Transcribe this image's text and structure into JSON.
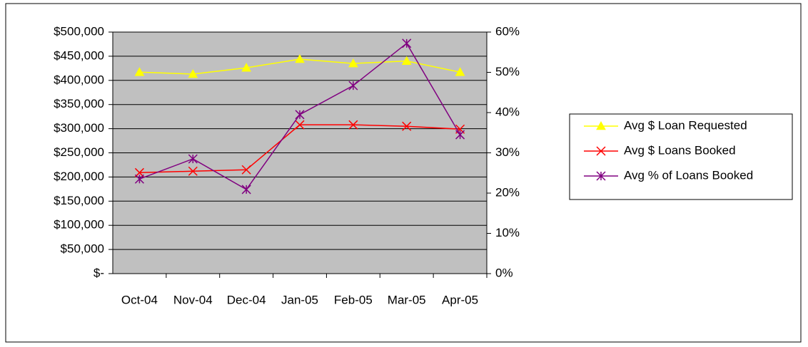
{
  "chart_data": {
    "type": "line",
    "categories": [
      "Oct-04",
      "Nov-04",
      "Dec-04",
      "Jan-05",
      "Feb-05",
      "Mar-05",
      "Apr-05"
    ],
    "series": [
      {
        "name": "Avg $ Loan Requested",
        "color": "#ffff00",
        "marker": "triangle",
        "values": [
          417000,
          413000,
          426000,
          444000,
          435000,
          440000,
          417000
        ]
      },
      {
        "name": "Avg $ Loans Booked",
        "color": "#ff0000",
        "marker": "x",
        "values": [
          209000,
          212000,
          215000,
          308000,
          308000,
          305000,
          299000
        ]
      },
      {
        "name": "Avg % of Loans Booked",
        "color": "#800080",
        "marker": "star",
        "axis": "y2",
        "values": [
          23.5,
          28.5,
          20.9,
          39.5,
          46.7,
          57.2,
          34.5
        ]
      }
    ],
    "ylim": [
      0,
      500000
    ],
    "yticks": [
      {
        "value": 0,
        "label": "$-"
      },
      {
        "value": 50000,
        "label": "$50,000"
      },
      {
        "value": 100000,
        "label": "$100,000"
      },
      {
        "value": 150000,
        "label": "$150,000"
      },
      {
        "value": 200000,
        "label": "$200,000"
      },
      {
        "value": 250000,
        "label": "$250,000"
      },
      {
        "value": 300000,
        "label": "$300,000"
      },
      {
        "value": 350000,
        "label": "$350,000"
      },
      {
        "value": 400000,
        "label": "$400,000"
      },
      {
        "value": 450000,
        "label": "$450,000"
      },
      {
        "value": 500000,
        "label": "$500,000"
      }
    ],
    "y2lim": [
      0,
      60
    ],
    "y2ticks": [
      {
        "value": 0,
        "label": "0%"
      },
      {
        "value": 10,
        "label": "10%"
      },
      {
        "value": 20,
        "label": "20%"
      },
      {
        "value": 30,
        "label": "30%"
      },
      {
        "value": 40,
        "label": "40%"
      },
      {
        "value": 50,
        "label": "50%"
      },
      {
        "value": 60,
        "label": "60%"
      }
    ],
    "grid": true,
    "plot_background": "#c0c0c0",
    "legend": "right"
  }
}
